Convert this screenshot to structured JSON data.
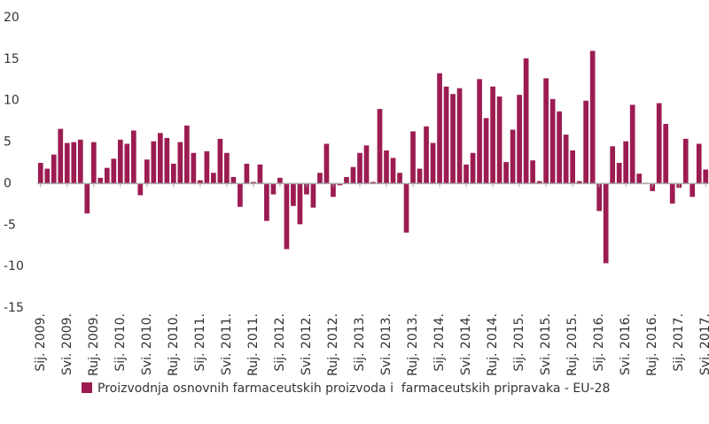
{
  "chart_data": {
    "type": "bar",
    "categories": [
      "Sij. 2009.",
      null,
      null,
      null,
      "Svi. 2009.",
      null,
      null,
      null,
      "Ruj. 2009.",
      null,
      null,
      null,
      "Sij. 2010.",
      null,
      null,
      null,
      "Svi. 2010.",
      null,
      null,
      null,
      "Ruj. 2010.",
      null,
      null,
      null,
      "Sij. 2011.",
      null,
      null,
      null,
      "Svi. 2011.",
      null,
      null,
      null,
      "Ruj. 2011.",
      null,
      null,
      null,
      "Sij. 2012.",
      null,
      null,
      null,
      "Svi. 2012.",
      null,
      null,
      null,
      "Ruj. 2012.",
      null,
      null,
      null,
      "Sij. 2013.",
      null,
      null,
      null,
      "Svi. 2013.",
      null,
      null,
      null,
      "Ruj. 2013.",
      null,
      null,
      null,
      "Sij. 2014.",
      null,
      null,
      null,
      "Svi. 2014.",
      null,
      null,
      null,
      "Ruj. 2014.",
      null,
      null,
      null,
      "Sij. 2015.",
      null,
      null,
      null,
      "Svi. 2015.",
      null,
      null,
      null,
      "Ruj. 2015.",
      null,
      null,
      null,
      "Sij. 2016.",
      null,
      null,
      null,
      "Svi. 2016.",
      null,
      null,
      null,
      "Ruj. 2016.",
      null,
      null,
      null,
      "Sij. 2017.",
      null,
      null,
      null,
      "Svi. 2017."
    ],
    "series": [
      {
        "name": "Proizvodnja osnovnih farmaceutskih proizvoda i  farmaceutskih pripravaka - EU-28",
        "color": "#9c1c52",
        "values": [
          2.5,
          1.8,
          3.5,
          6.6,
          4.9,
          5.0,
          5.3,
          -3.6,
          5.0,
          0.7,
          1.9,
          3.0,
          5.3,
          4.8,
          6.4,
          -1.4,
          2.9,
          5.1,
          6.1,
          5.5,
          2.4,
          5.0,
          7.0,
          3.7,
          0.4,
          3.9,
          1.3,
          5.4,
          3.7,
          0.8,
          -2.8,
          2.4,
          0.2,
          2.3,
          -4.5,
          -1.3,
          0.7,
          -7.9,
          -2.7,
          -4.9,
          -1.3,
          -2.9,
          1.3,
          4.8,
          -1.6,
          -0.2,
          0.8,
          2.0,
          3.7,
          4.6,
          0.2,
          9.0,
          4.0,
          3.1,
          1.3,
          -5.9,
          6.3,
          1.8,
          6.9,
          4.9,
          13.3,
          11.7,
          10.8,
          11.5,
          2.3,
          3.7,
          12.6,
          7.9,
          11.7,
          10.5,
          2.6,
          6.5,
          10.7,
          15.1,
          2.8,
          0.3,
          12.7,
          10.2,
          8.7,
          5.9,
          4.0,
          0.3,
          10.0,
          16.0,
          -3.3,
          -9.6,
          4.5,
          2.5,
          5.1,
          9.5,
          1.2,
          0.1,
          -0.9,
          9.7,
          7.2,
          -2.4,
          -0.5,
          5.4,
          -1.6,
          4.8,
          1.7
        ]
      }
    ],
    "ylim": [
      -15,
      20
    ],
    "yticks": [
      -15,
      -10,
      -5,
      0,
      5,
      10,
      15,
      20
    ],
    "grid": false
  }
}
